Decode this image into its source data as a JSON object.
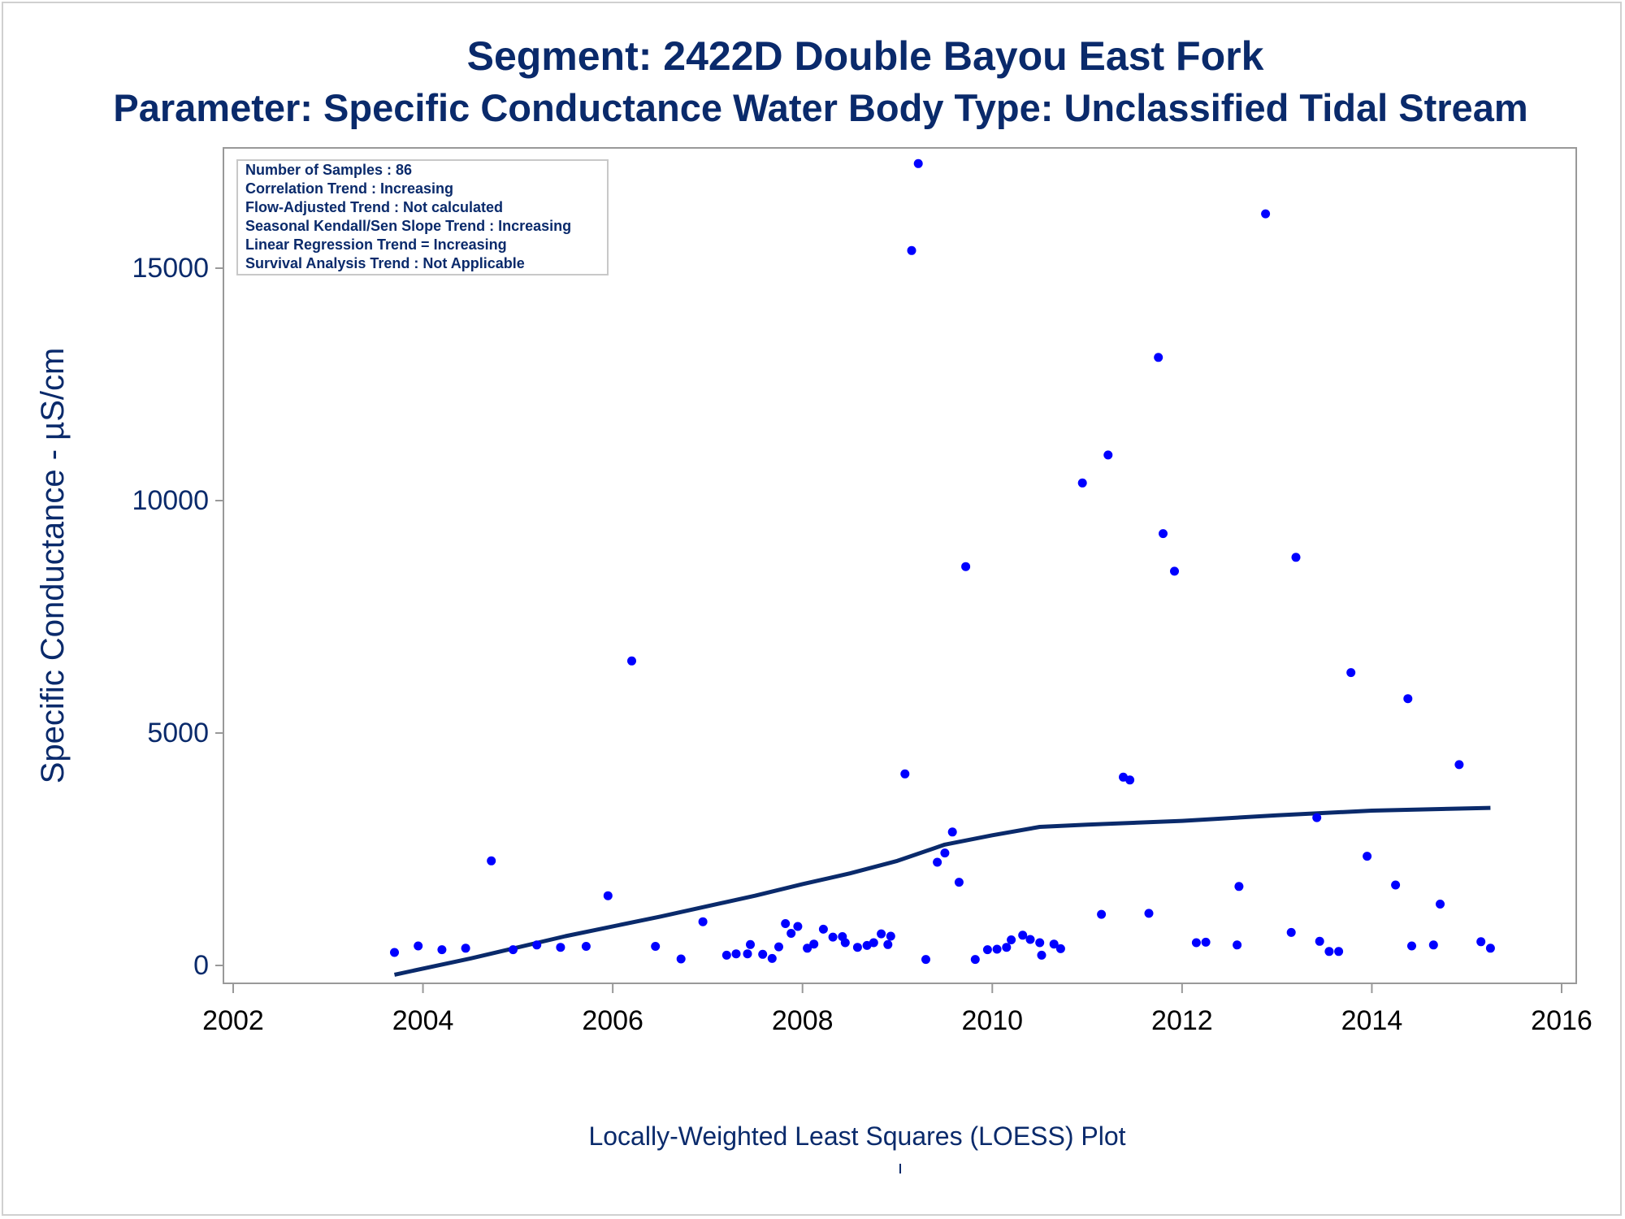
{
  "titles": {
    "line1": "Segment: 2422D  Double Bayou East Fork",
    "line2": "Parameter: Specific Conductance   Water Body Type: Unclassified Tidal Stream"
  },
  "footnote": "Locally-Weighted Least Squares (LOESS) Plot",
  "colors": {
    "text": "#0a2a6b",
    "points": "#0000ff",
    "loess": "#0a2a6b",
    "frame": "#999999"
  },
  "chart_data": {
    "type": "scatter",
    "xlabel": "",
    "ylabel": "Specific Conductance -  µS/cm",
    "xlim": [
      2002,
      2016
    ],
    "ylim": [
      -400,
      17400
    ],
    "x_ticks": [
      2002,
      2004,
      2006,
      2008,
      2010,
      2012,
      2014,
      2016
    ],
    "y_ticks": [
      0,
      5000,
      10000,
      15000
    ],
    "grid": false,
    "legend_position": "top-left",
    "info_box": [
      "Number of Samples : 86",
      "Correlation Trend : Increasing",
      "Flow-Adjusted Trend : Not calculated",
      "Seasonal Kendall/Sen Slope Trend : Increasing",
      "Linear Regression Trend = Increasing",
      "Survival Analysis Trend : Not Applicable"
    ],
    "series": [
      {
        "type": "scatter",
        "points": [
          [
            2003.7,
            280
          ],
          [
            2003.95,
            420
          ],
          [
            2004.2,
            340
          ],
          [
            2004.45,
            370
          ],
          [
            2004.72,
            2250
          ],
          [
            2004.95,
            340
          ],
          [
            2005.2,
            440
          ],
          [
            2005.45,
            390
          ],
          [
            2005.72,
            410
          ],
          [
            2005.95,
            1500
          ],
          [
            2006.2,
            6550
          ],
          [
            2006.45,
            410
          ],
          [
            2006.72,
            140
          ],
          [
            2006.95,
            940
          ],
          [
            2007.2,
            220
          ],
          [
            2007.3,
            250
          ],
          [
            2007.42,
            250
          ],
          [
            2007.45,
            450
          ],
          [
            2007.58,
            240
          ],
          [
            2007.68,
            150
          ],
          [
            2007.75,
            400
          ],
          [
            2007.82,
            900
          ],
          [
            2007.88,
            690
          ],
          [
            2007.95,
            840
          ],
          [
            2008.05,
            370
          ],
          [
            2008.12,
            460
          ],
          [
            2008.22,
            780
          ],
          [
            2008.32,
            610
          ],
          [
            2008.42,
            620
          ],
          [
            2008.45,
            490
          ],
          [
            2008.58,
            390
          ],
          [
            2008.68,
            430
          ],
          [
            2008.75,
            490
          ],
          [
            2008.83,
            680
          ],
          [
            2008.9,
            450
          ],
          [
            2008.93,
            630
          ],
          [
            2009.08,
            4120
          ],
          [
            2009.15,
            15380
          ],
          [
            2009.22,
            17250
          ],
          [
            2009.3,
            130
          ],
          [
            2009.42,
            2220
          ],
          [
            2009.5,
            2420
          ],
          [
            2009.58,
            2870
          ],
          [
            2009.65,
            1790
          ],
          [
            2009.72,
            8580
          ],
          [
            2009.82,
            130
          ],
          [
            2009.95,
            340
          ],
          [
            2010.05,
            350
          ],
          [
            2010.15,
            390
          ],
          [
            2010.2,
            550
          ],
          [
            2010.32,
            650
          ],
          [
            2010.4,
            560
          ],
          [
            2010.5,
            490
          ],
          [
            2010.52,
            220
          ],
          [
            2010.65,
            460
          ],
          [
            2010.72,
            360
          ],
          [
            2010.95,
            10380
          ],
          [
            2011.15,
            1100
          ],
          [
            2011.22,
            10980
          ],
          [
            2011.38,
            4050
          ],
          [
            2011.45,
            3990
          ],
          [
            2011.65,
            1120
          ],
          [
            2011.75,
            13080
          ],
          [
            2011.8,
            9290
          ],
          [
            2011.92,
            8480
          ],
          [
            2012.15,
            490
          ],
          [
            2012.25,
            500
          ],
          [
            2012.58,
            440
          ],
          [
            2012.6,
            1700
          ],
          [
            2012.88,
            16170
          ],
          [
            2013.15,
            710
          ],
          [
            2013.2,
            8780
          ],
          [
            2013.42,
            3180
          ],
          [
            2013.45,
            520
          ],
          [
            2013.55,
            300
          ],
          [
            2013.65,
            300
          ],
          [
            2013.78,
            6300
          ],
          [
            2013.95,
            2350
          ],
          [
            2014.25,
            1730
          ],
          [
            2014.38,
            5740
          ],
          [
            2014.42,
            420
          ],
          [
            2014.65,
            440
          ],
          [
            2014.72,
            1320
          ],
          [
            2014.92,
            4320
          ],
          [
            2015.15,
            510
          ],
          [
            2015.25,
            370
          ]
        ]
      },
      {
        "type": "line",
        "points": [
          [
            2003.7,
            -200
          ],
          [
            2004.5,
            150
          ],
          [
            2005.5,
            630
          ],
          [
            2006.5,
            1050
          ],
          [
            2007.5,
            1500
          ],
          [
            2008.0,
            1750
          ],
          [
            2008.5,
            1980
          ],
          [
            2009.0,
            2250
          ],
          [
            2009.5,
            2600
          ],
          [
            2010.0,
            2800
          ],
          [
            2010.5,
            2980
          ],
          [
            2011.0,
            3030
          ],
          [
            2012.0,
            3110
          ],
          [
            2013.0,
            3230
          ],
          [
            2014.0,
            3330
          ],
          [
            2015.25,
            3390
          ]
        ]
      }
    ]
  }
}
